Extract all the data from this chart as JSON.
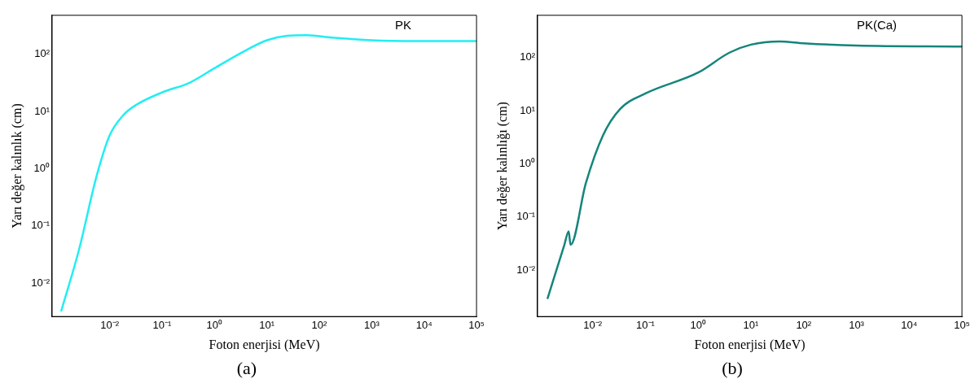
{
  "chart_data": [
    {
      "type": "line",
      "xlabel": "Foton enerjisi (MeV)",
      "ylabel": "Yarı değer kalınlık (cm)",
      "log": "xy",
      "grid": false,
      "legend": false,
      "marker": "none",
      "line_style": "solid",
      "xlim": [
        0.0008,
        100000
      ],
      "ylim": [
        0.0026,
        480
      ],
      "xticks": [
        {
          "value": 0.01,
          "label": "10⁻²"
        },
        {
          "value": 0.1,
          "label": "10⁻¹"
        },
        {
          "value": 1,
          "label": "10⁰"
        },
        {
          "value": 10,
          "label": "10¹"
        },
        {
          "value": 100,
          "label": "10²"
        },
        {
          "value": 1000,
          "label": "10³"
        },
        {
          "value": 10000,
          "label": "10⁴"
        },
        {
          "value": 100000,
          "label": "10⁵"
        }
      ],
      "yticks": [
        {
          "value": 0.01,
          "label": "10⁻²"
        },
        {
          "value": 0.1,
          "label": "10⁻¹"
        },
        {
          "value": 1,
          "label": "10⁰"
        },
        {
          "value": 10,
          "label": "10¹"
        },
        {
          "value": 100,
          "label": "10²"
        }
      ],
      "series": [
        {
          "color": "#22eef2",
          "x": [
            0.0012,
            0.0026,
            0.0056,
            0.01,
            0.018,
            0.032,
            0.1,
            0.34,
            1,
            3.5,
            10,
            24.5,
            57,
            178,
            1000,
            10000,
            100000
          ],
          "values": [
            0.0033,
            0.038,
            0.72,
            3.8,
            8.5,
            13,
            21.5,
            32,
            57,
            110,
            176,
            210,
            215,
            195,
            176,
            170,
            170
          ]
        }
      ],
      "annotations": [
        "PK",
        "(a)"
      ]
    },
    {
      "type": "line",
      "xlabel": "Foton enerjisi (MeV)",
      "ylabel": "Yarı değer kalınlığı (cm)",
      "log": "xy",
      "grid": false,
      "legend": false,
      "marker": "none",
      "line_style": "solid",
      "xlim": [
        0.0009,
        100000
      ],
      "ylim": [
        0.00135,
        620
      ],
      "xticks": [
        {
          "value": 0.01,
          "label": "10⁻²"
        },
        {
          "value": 0.1,
          "label": "10⁻¹"
        },
        {
          "value": 1,
          "label": "10⁰"
        },
        {
          "value": 10,
          "label": "10¹"
        },
        {
          "value": 100,
          "label": "10²"
        },
        {
          "value": 1000,
          "label": "10³"
        },
        {
          "value": 10000,
          "label": "10⁴"
        },
        {
          "value": 100000,
          "label": "10⁵"
        }
      ],
      "yticks": [
        {
          "value": 0.01,
          "label": "10⁻²"
        },
        {
          "value": 0.1,
          "label": "10⁻¹"
        },
        {
          "value": 1,
          "label": "10⁰"
        },
        {
          "value": 10,
          "label": "10¹"
        },
        {
          "value": 100,
          "label": "10²"
        }
      ],
      "series": [
        {
          "color": "#14857a",
          "x": [
            0.0014,
            0.0029,
            0.0035,
            0.0038,
            0.0074,
            0.0156,
            0.033,
            0.1,
            1,
            3.9,
            10,
            35,
            100,
            1000,
            100000
          ],
          "values": [
            0.003,
            0.03,
            0.054,
            0.03,
            0.43,
            3.4,
            10.7,
            21,
            52,
            123,
            174,
            200,
            185,
            167,
            160
          ]
        }
      ],
      "annotations": [
        "PK(Ca)",
        "(b)"
      ]
    }
  ]
}
